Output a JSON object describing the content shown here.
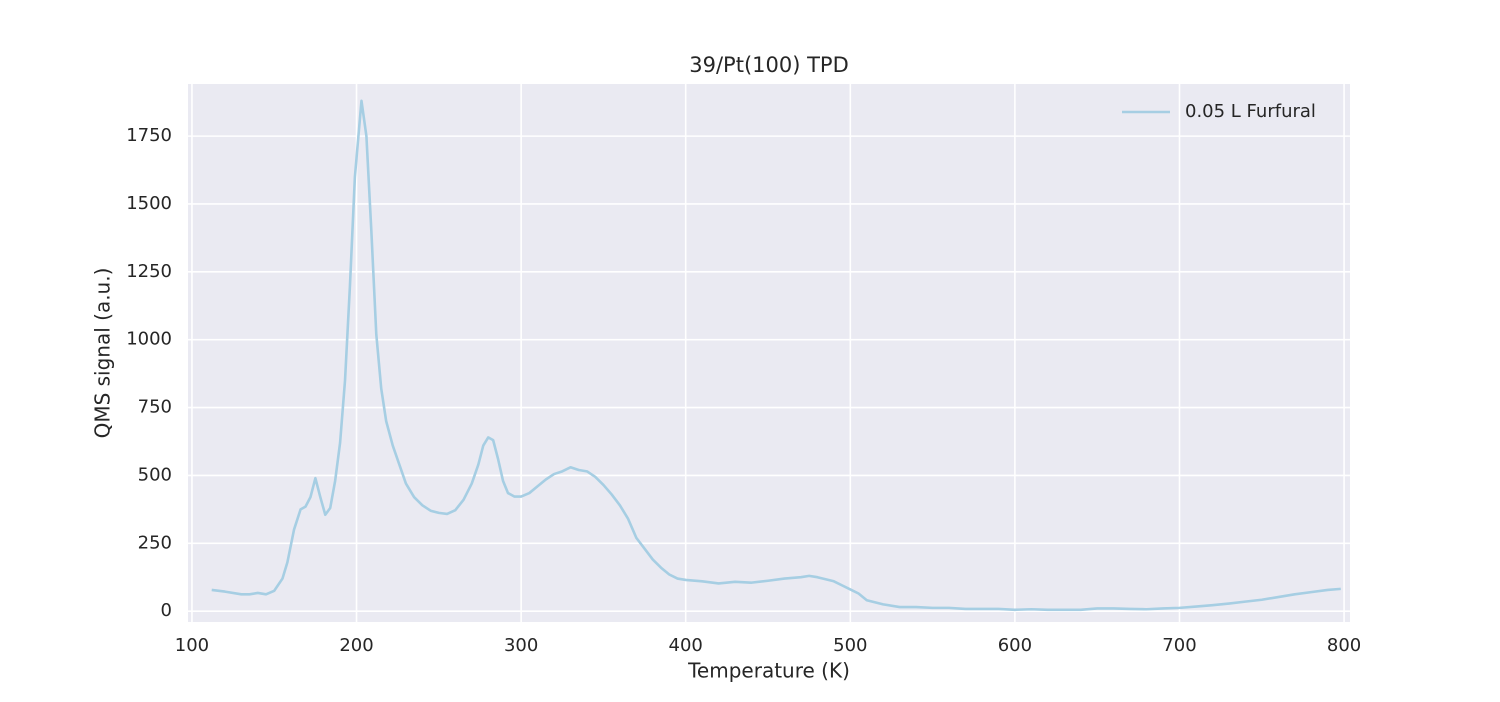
{
  "chart_data": {
    "type": "line",
    "title": "39/Pt(100) TPD",
    "x_label": "Temperature (K)",
    "y_label": "QMS signal (a.u.)",
    "x": [
      112,
      120,
      130,
      135,
      140,
      145,
      150,
      155,
      158,
      162,
      166,
      169,
      172,
      175,
      178,
      181,
      184,
      187,
      190,
      193,
      196,
      199,
      203,
      206,
      209,
      212,
      215,
      218,
      222,
      226,
      230,
      235,
      240,
      245,
      250,
      255,
      260,
      265,
      270,
      274,
      277,
      280,
      283,
      286,
      289,
      292,
      296,
      300,
      305,
      310,
      315,
      320,
      325,
      330,
      335,
      340,
      345,
      350,
      355,
      360,
      365,
      370,
      375,
      380,
      385,
      390,
      395,
      400,
      410,
      420,
      430,
      440,
      450,
      460,
      470,
      475,
      480,
      490,
      495,
      500,
      505,
      510,
      520,
      530,
      540,
      550,
      560,
      570,
      580,
      590,
      600,
      610,
      620,
      630,
      640,
      650,
      660,
      670,
      680,
      690,
      700,
      710,
      720,
      730,
      740,
      750,
      760,
      770,
      780,
      790,
      798
    ],
    "series": [
      {
        "name": "0.05 L Furfural",
        "color": "#a6cee3",
        "values": [
          78,
          72,
          62,
          62,
          67,
          62,
          75,
          120,
          180,
          300,
          375,
          385,
          420,
          490,
          420,
          355,
          380,
          480,
          620,
          850,
          1200,
          1600,
          1880,
          1750,
          1400,
          1020,
          820,
          700,
          610,
          540,
          470,
          420,
          390,
          370,
          362,
          358,
          372,
          410,
          470,
          540,
          610,
          640,
          630,
          560,
          480,
          435,
          422,
          422,
          435,
          460,
          485,
          505,
          515,
          530,
          520,
          515,
          495,
          465,
          430,
          390,
          340,
          270,
          230,
          190,
          160,
          135,
          120,
          115,
          110,
          102,
          108,
          105,
          112,
          120,
          125,
          130,
          125,
          110,
          95,
          80,
          65,
          40,
          25,
          15,
          15,
          12,
          12,
          8,
          8,
          8,
          5,
          7,
          5,
          5,
          5,
          10,
          10,
          8,
          7,
          10,
          12,
          17,
          22,
          28,
          35,
          42,
          52,
          62,
          70,
          78,
          82
        ]
      }
    ],
    "xlim": [
      97.6,
      803.6
    ],
    "xticks": [
      100,
      200,
      300,
      400,
      500,
      600,
      700,
      800
    ],
    "ylim": [
      -40,
      1942
    ],
    "yticks": [
      0,
      250,
      500,
      750,
      1000,
      1250,
      1500,
      1750
    ],
    "grid": true,
    "legend": "upper right"
  }
}
